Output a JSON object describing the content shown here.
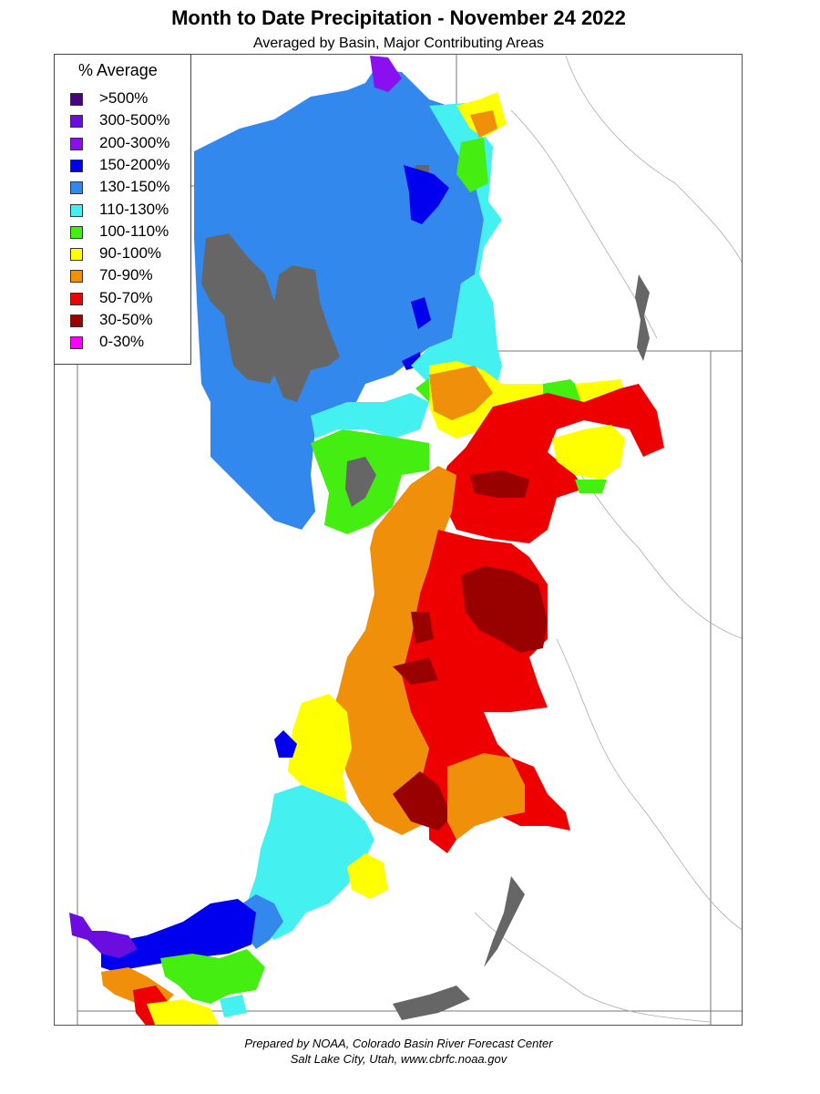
{
  "title": "Month to Date Precipitation - November 24 2022",
  "subtitle": "Averaged by Basin, Major Contributing Areas",
  "legend": {
    "title": "% Average",
    "items": [
      {
        "label": ">500%",
        "color": "#4b0082"
      },
      {
        "label": "300-500%",
        "color": "#6a0dde"
      },
      {
        "label": "200-300%",
        "color": "#8a10f0"
      },
      {
        "label": "150-200%",
        "color": "#0000ee"
      },
      {
        "label": "130-150%",
        "color": "#3388ee"
      },
      {
        "label": "110-130%",
        "color": "#44f0f0"
      },
      {
        "label": "100-110%",
        "color": "#44ee11"
      },
      {
        "label": "90-100%",
        "color": "#ffff00"
      },
      {
        "label": "70-90%",
        "color": "#f0900a"
      },
      {
        "label": "50-70%",
        "color": "#ee0000"
      },
      {
        "label": "30-50%",
        "color": "#990000"
      },
      {
        "label": "0-30%",
        "color": "#ff00ff"
      }
    ]
  },
  "colors": {
    "no_data": "#666666",
    "boundaries": "#888888"
  },
  "footer": {
    "line1": "Prepared by NOAA, Colorado Basin River Forecast Center",
    "line2": "Salt Lake City, Utah, www.cbrfc.noaa.gov"
  }
}
